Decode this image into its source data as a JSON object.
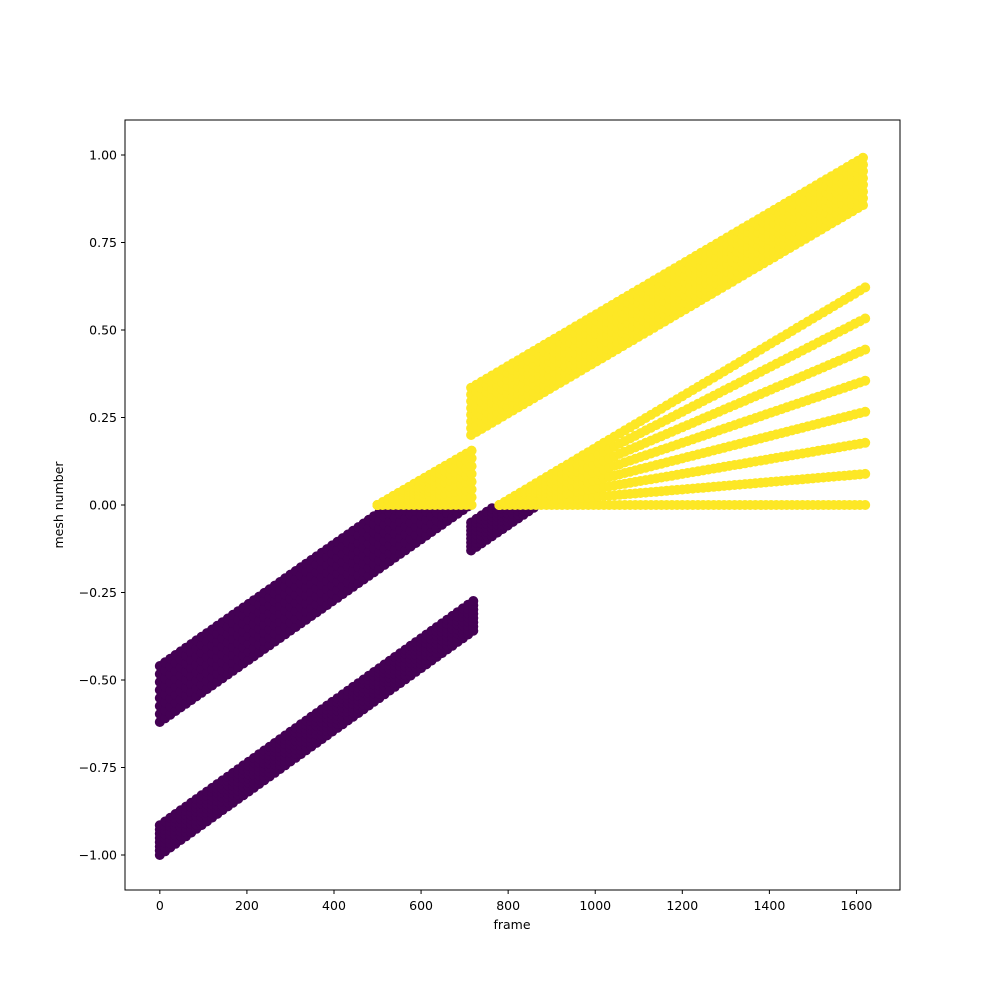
{
  "chart_data": {
    "type": "scatter",
    "xlabel": "frame",
    "ylabel": "mesh number",
    "xlim": [
      -80,
      1700
    ],
    "ylim": [
      -1.1,
      1.1
    ],
    "xticks": [
      0,
      200,
      400,
      600,
      800,
      1000,
      1200,
      1400,
      1600
    ],
    "yticks": [
      -1.0,
      -0.75,
      -0.5,
      -0.25,
      0.0,
      0.25,
      0.5,
      0.75,
      1.0
    ],
    "xtick_labels": [
      "0",
      "200",
      "400",
      "600",
      "800",
      "1000",
      "1200",
      "1400",
      "1600"
    ],
    "ytick_labels": [
      "−1.00",
      "−0.75",
      "−0.50",
      "−0.25",
      "0.00",
      "0.25",
      "0.50",
      "0.75",
      "1.00"
    ],
    "grid": false,
    "legend": "none",
    "colors": {
      "negative": "#440154",
      "positive": "#fde725"
    },
    "bands": [
      {
        "color": "negative",
        "x_start": 0,
        "x_end": 720,
        "y_low_start": -0.62,
        "y_high_start": -0.46,
        "slope": 0.00087,
        "y_max": 0.0
      },
      {
        "color": "negative",
        "x_start": 0,
        "x_end": 720,
        "y_low_start": -1.0,
        "y_high_start": -0.915,
        "slope": 0.00089
      },
      {
        "color": "positive",
        "x_start": 500,
        "x_end": 720,
        "y_low_start": 0.0,
        "y_high_start": 0.0,
        "slope": 0.00072,
        "y_min": 0.0
      },
      {
        "color": "positive",
        "x_start": 715,
        "x_end": 1620,
        "y_low_start": 0.2,
        "y_high_start": 0.335,
        "slope": 0.00073
      },
      {
        "color": "negative",
        "x_start": 715,
        "x_end": 870,
        "y_low_start": -0.13,
        "y_high_start": -0.05,
        "slope": 0.00085,
        "y_max": 0.0
      },
      {
        "color": "positive",
        "x_start": 780,
        "x_end": 1620,
        "y_low_start": 0.0,
        "y_high_start": 0.0,
        "slope": 0.00074,
        "y_min": 0.0
      }
    ]
  }
}
